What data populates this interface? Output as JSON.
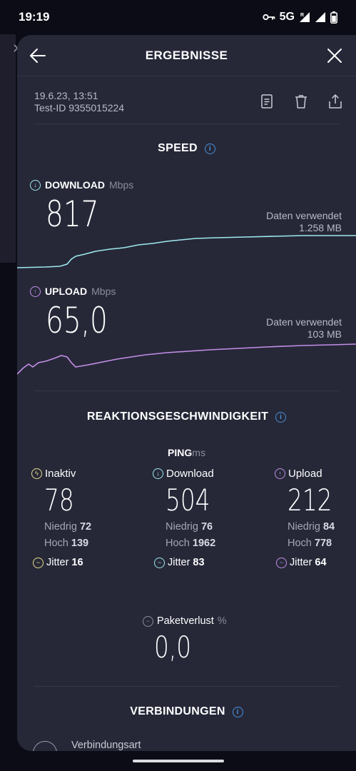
{
  "status_bar": {
    "time": "19:19",
    "network": "5G",
    "icons": [
      "key-icon",
      "signal-icon",
      "signal-icon",
      "battery-icon"
    ]
  },
  "header": {
    "title": "ERGEBNISSE",
    "back_icon": "arrow-left-icon",
    "close_icon": "close-icon"
  },
  "test_info": {
    "date": "19.6.23, 13:51",
    "test_id": "Test-ID 9355015224",
    "actions": [
      "document-icon",
      "trash-icon",
      "share-icon"
    ]
  },
  "speed": {
    "section_title": "SPEED",
    "download": {
      "label": "DOWNLOAD",
      "unit": "Mbps",
      "value": "817",
      "data_label": "Daten verwendet",
      "data_value": "1.258 MB",
      "color": "#9ee9ee"
    },
    "upload": {
      "label": "UPLOAD",
      "unit": "Mbps",
      "value": "65,0",
      "data_label": "Daten verwendet",
      "data_value": "103 MB",
      "color": "#c48ee6"
    }
  },
  "reaction": {
    "section_title": "REAKTIONSGESCHWINDIGKEIT",
    "ping_label": "PING",
    "ping_unit": "ms",
    "columns": [
      {
        "label": "Inaktiv",
        "value": "78",
        "low_label": "Niedrig",
        "low": "72",
        "high_label": "Hoch",
        "high": "139",
        "jitter_label": "Jitter",
        "jitter": "16",
        "color": "#e8dc8a"
      },
      {
        "label": "Download",
        "value": "504",
        "low_label": "Niedrig",
        "low": "76",
        "high_label": "Hoch",
        "high": "1962",
        "jitter_label": "Jitter",
        "jitter": "83",
        "color": "#9ee9ee"
      },
      {
        "label": "Upload",
        "value": "212",
        "low_label": "Niedrig",
        "low": "84",
        "high_label": "Hoch",
        "high": "778",
        "jitter_label": "Jitter",
        "jitter": "64",
        "color": "#c48ee6"
      }
    ],
    "packet_loss": {
      "label": "Paketverlust",
      "unit": "%",
      "value": "0,0"
    }
  },
  "connections": {
    "section_title": "VERBINDUNGEN",
    "first_row_label": "Verbindungsart"
  }
}
